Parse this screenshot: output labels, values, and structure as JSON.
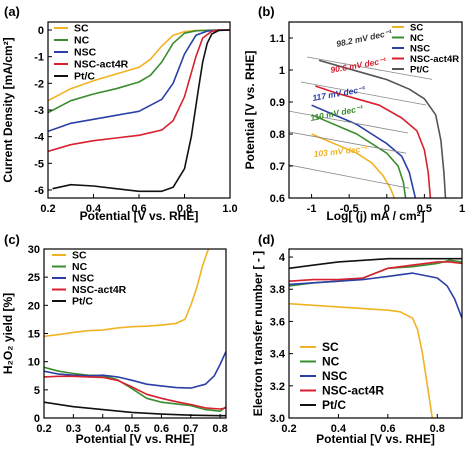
{
  "chart_data": [
    {
      "panel": "(a)",
      "type": "line",
      "xlabel": "Potential [V vs. RHE]",
      "ylabel": "Current Density [mA/cm²]",
      "xlim": [
        0.2,
        1.0
      ],
      "ylim": [
        -6.3,
        0.3
      ],
      "xticks": [
        "0.2",
        "0.4",
        "0.6",
        "0.8",
        "1.0"
      ],
      "yticks": [
        "0",
        "-1",
        "-2",
        "-3",
        "-4",
        "-5",
        "-6"
      ],
      "legend": "top-left",
      "series": [
        {
          "name": "SC",
          "color": "#f0b323",
          "x": [
            0.2,
            0.3,
            0.4,
            0.5,
            0.6,
            0.65,
            0.7,
            0.75,
            0.8,
            0.85,
            0.9,
            0.95,
            1.0
          ],
          "y": [
            -2.65,
            -2.2,
            -1.9,
            -1.65,
            -1.4,
            -1.1,
            -0.6,
            -0.2,
            -0.06,
            -0.02,
            -0.01,
            0,
            0
          ]
        },
        {
          "name": "NC",
          "color": "#3a8c2f",
          "x": [
            0.2,
            0.3,
            0.4,
            0.5,
            0.6,
            0.65,
            0.7,
            0.75,
            0.8,
            0.85,
            0.9,
            0.95,
            1.0
          ],
          "y": [
            -3.1,
            -2.65,
            -2.4,
            -2.2,
            -1.95,
            -1.7,
            -1.2,
            -0.5,
            -0.12,
            -0.03,
            -0.01,
            0,
            0
          ]
        },
        {
          "name": "NSC",
          "color": "#2b3fa6",
          "x": [
            0.2,
            0.3,
            0.4,
            0.5,
            0.6,
            0.7,
            0.75,
            0.8,
            0.85,
            0.9,
            0.95,
            1.0
          ],
          "y": [
            -3.8,
            -3.5,
            -3.35,
            -3.2,
            -3.05,
            -2.6,
            -2.0,
            -0.9,
            -0.2,
            -0.04,
            0,
            0
          ]
        },
        {
          "name": "NSC-act4R",
          "color": "#d8202f",
          "x": [
            0.2,
            0.3,
            0.4,
            0.5,
            0.6,
            0.7,
            0.75,
            0.8,
            0.85,
            0.88,
            0.92,
            0.95,
            1.0
          ],
          "y": [
            -4.55,
            -4.3,
            -4.15,
            -4.05,
            -3.95,
            -3.75,
            -3.4,
            -2.5,
            -1.0,
            -0.3,
            -0.05,
            0,
            0
          ]
        },
        {
          "name": "Pt/C",
          "color": "#111111",
          "x": [
            0.22,
            0.3,
            0.4,
            0.5,
            0.6,
            0.7,
            0.75,
            0.8,
            0.83,
            0.86,
            0.88,
            0.9,
            0.92,
            0.95,
            1.0
          ],
          "y": [
            -5.95,
            -5.8,
            -5.85,
            -5.95,
            -6.05,
            -6.05,
            -5.9,
            -5.2,
            -4.0,
            -2.3,
            -1.2,
            -0.5,
            -0.15,
            -0.02,
            0
          ]
        }
      ]
    },
    {
      "panel": "(b)",
      "type": "line",
      "xlabel": "Log[ (j) mA / cm²]",
      "ylabel": "Potential [V vs. RHE]",
      "xlim": [
        -1.3,
        1.0
      ],
      "ylim": [
        0.6,
        1.15
      ],
      "xticks": [
        "-1",
        "-0.5",
        "0",
        "0.5",
        "1"
      ],
      "yticks": [
        "0.6",
        "0.7",
        "0.8",
        "0.9",
        "1",
        "1.1"
      ],
      "legend": "top-right",
      "annotations": [
        {
          "text": "98.2 mV dec⁻¹",
          "color": "#333333"
        },
        {
          "text": "90.6 mV dec⁻¹",
          "color": "#d8202f"
        },
        {
          "text": "117 mV dec⁻¹",
          "color": "#2b3fa6"
        },
        {
          "text": "110 mV dec⁻¹",
          "color": "#3a8c2f"
        },
        {
          "text": "103 mV dec⁻¹",
          "color": "#f0b323"
        }
      ],
      "series": [
        {
          "name": "SC",
          "color": "#f0b323",
          "x": [
            -1.0,
            -0.8,
            -0.6,
            -0.4,
            -0.2,
            -0.05,
            0.05,
            0.1
          ],
          "y": [
            0.8,
            0.78,
            0.76,
            0.74,
            0.71,
            0.67,
            0.63,
            0.6
          ]
        },
        {
          "name": "NC",
          "color": "#3a8c2f",
          "x": [
            -1.0,
            -0.8,
            -0.6,
            -0.4,
            -0.2,
            0.0,
            0.15,
            0.22,
            0.25
          ],
          "y": [
            0.86,
            0.84,
            0.82,
            0.8,
            0.77,
            0.74,
            0.7,
            0.65,
            0.6
          ]
        },
        {
          "name": "NSC",
          "color": "#2b3fa6",
          "x": [
            -1.0,
            -0.8,
            -0.6,
            -0.4,
            -0.2,
            0.0,
            0.2,
            0.3,
            0.35,
            0.38
          ],
          "y": [
            0.89,
            0.87,
            0.85,
            0.83,
            0.8,
            0.77,
            0.73,
            0.68,
            0.63,
            0.6
          ]
        },
        {
          "name": "NSC-act4R",
          "color": "#d8202f",
          "x": [
            -0.95,
            -0.7,
            -0.4,
            -0.1,
            0.2,
            0.4,
            0.5,
            0.55,
            0.58
          ],
          "y": [
            0.95,
            0.93,
            0.91,
            0.89,
            0.85,
            0.81,
            0.75,
            0.68,
            0.6
          ]
        },
        {
          "name": "Pt/C",
          "color": "#555555",
          "x": [
            -0.9,
            -0.6,
            -0.3,
            0.0,
            0.3,
            0.5,
            0.65,
            0.72,
            0.76,
            0.78
          ],
          "y": [
            1.03,
            1.01,
            0.99,
            0.97,
            0.94,
            0.91,
            0.86,
            0.78,
            0.68,
            0.6
          ]
        }
      ]
    },
    {
      "panel": "(c)",
      "type": "line",
      "xlabel": "Potential [V vs. RHE]",
      "ylabel": "H₂O₂ yield [%]",
      "xlim": [
        0.2,
        0.82
      ],
      "ylim": [
        0,
        30
      ],
      "xticks": [
        "0.2",
        "0.3",
        "0.4",
        "0.5",
        "0.6",
        "0.7",
        "0.8"
      ],
      "yticks": [
        "0",
        "5",
        "10",
        "15",
        "20",
        "25",
        "30"
      ],
      "legend": "top-left",
      "series": [
        {
          "name": "SC",
          "color": "#f0b323",
          "x": [
            0.2,
            0.25,
            0.3,
            0.35,
            0.4,
            0.45,
            0.5,
            0.55,
            0.6,
            0.65,
            0.68,
            0.7,
            0.72,
            0.74,
            0.76
          ],
          "y": [
            14.5,
            14.8,
            15.2,
            15.5,
            15.6,
            16.0,
            16.2,
            16.3,
            16.5,
            16.8,
            17.5,
            20,
            23,
            27,
            30
          ]
        },
        {
          "name": "NC",
          "color": "#3a8c2f",
          "x": [
            0.2,
            0.25,
            0.3,
            0.35,
            0.4,
            0.45,
            0.5,
            0.55,
            0.6,
            0.65,
            0.7,
            0.75,
            0.8,
            0.82
          ],
          "y": [
            9.0,
            8.3,
            7.9,
            7.6,
            7.5,
            6.8,
            5.2,
            3.5,
            2.8,
            2.5,
            2.2,
            1.5,
            1.2,
            2.0
          ]
        },
        {
          "name": "NSC",
          "color": "#2b3fa6",
          "x": [
            0.2,
            0.25,
            0.3,
            0.35,
            0.4,
            0.45,
            0.5,
            0.55,
            0.6,
            0.65,
            0.7,
            0.75,
            0.78,
            0.8,
            0.82
          ],
          "y": [
            8.3,
            7.8,
            7.6,
            7.5,
            7.6,
            7.3,
            6.7,
            6.0,
            5.7,
            5.4,
            5.3,
            6.0,
            7.5,
            9.5,
            11.8
          ]
        },
        {
          "name": "NSC-act4R",
          "color": "#d8202f",
          "x": [
            0.2,
            0.25,
            0.3,
            0.35,
            0.4,
            0.45,
            0.5,
            0.55,
            0.6,
            0.65,
            0.7,
            0.75,
            0.8,
            0.82
          ],
          "y": [
            7.3,
            7.4,
            7.4,
            7.3,
            7.2,
            6.7,
            5.5,
            4.2,
            3.5,
            2.9,
            2.4,
            1.8,
            1.6,
            1.8
          ]
        },
        {
          "name": "Pt/C",
          "color": "#111111",
          "x": [
            0.2,
            0.3,
            0.4,
            0.5,
            0.6,
            0.7,
            0.8,
            0.82
          ],
          "y": [
            2.8,
            2.0,
            1.5,
            1.0,
            0.7,
            0.5,
            0.4,
            0.4
          ]
        }
      ]
    },
    {
      "panel": "(d)",
      "type": "line",
      "xlabel": "Potential [V vs. RHE]",
      "ylabel": "Electron transfer number [ - ]",
      "xlim": [
        0.2,
        0.9
      ],
      "ylim": [
        3.0,
        4.05
      ],
      "xticks": [
        "0.2",
        "0.4",
        "0.6",
        "0.8"
      ],
      "yticks": [
        "3.0",
        "3.2",
        "3.4",
        "3.6",
        "3.8",
        "4"
      ],
      "legend": "bottom-left",
      "series": [
        {
          "name": "SC",
          "color": "#f0b323",
          "x": [
            0.2,
            0.3,
            0.4,
            0.5,
            0.6,
            0.65,
            0.7,
            0.72,
            0.74,
            0.76,
            0.78
          ],
          "y": [
            3.71,
            3.7,
            3.69,
            3.68,
            3.67,
            3.66,
            3.62,
            3.55,
            3.4,
            3.2,
            3.0
          ]
        },
        {
          "name": "NC",
          "color": "#3a8c2f",
          "x": [
            0.2,
            0.3,
            0.4,
            0.5,
            0.55,
            0.6,
            0.7,
            0.8,
            0.85,
            0.9
          ],
          "y": [
            3.82,
            3.84,
            3.85,
            3.87,
            3.9,
            3.93,
            3.94,
            3.96,
            3.98,
            3.97
          ]
        },
        {
          "name": "NSC",
          "color": "#2b3fa6",
          "x": [
            0.2,
            0.3,
            0.4,
            0.5,
            0.55,
            0.6,
            0.7,
            0.8,
            0.84,
            0.87,
            0.9
          ],
          "y": [
            3.83,
            3.84,
            3.85,
            3.86,
            3.87,
            3.88,
            3.9,
            3.87,
            3.82,
            3.74,
            3.62
          ]
        },
        {
          "name": "NSC-act4R",
          "color": "#d8202f",
          "x": [
            0.2,
            0.3,
            0.4,
            0.5,
            0.55,
            0.6,
            0.7,
            0.8,
            0.85,
            0.9
          ],
          "y": [
            3.85,
            3.86,
            3.86,
            3.87,
            3.9,
            3.93,
            3.95,
            3.97,
            3.97,
            3.96
          ]
        },
        {
          "name": "Pt/C",
          "color": "#111111",
          "x": [
            0.2,
            0.3,
            0.4,
            0.5,
            0.6,
            0.7,
            0.8,
            0.9
          ],
          "y": [
            3.93,
            3.95,
            3.97,
            3.98,
            3.99,
            3.99,
            3.99,
            3.99
          ]
        }
      ]
    }
  ]
}
